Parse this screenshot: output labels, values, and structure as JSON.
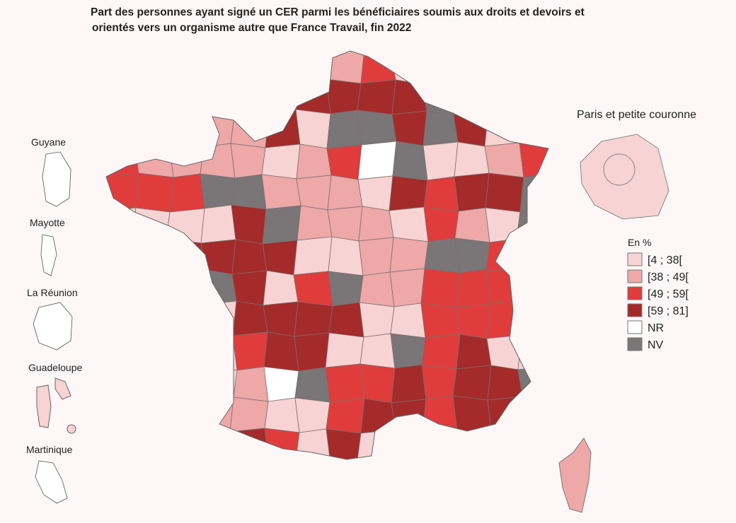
{
  "title": [
    "Part des personnes ayant signé un CER parmi les bénéficiaires soumis aux droits et devoirs et",
    "orientés vers un organisme autre que France Travail, fin 2022"
  ],
  "insets": [
    "Guyane",
    "Mayotte",
    "La Réunion",
    "Guadeloupe",
    "Martinique",
    "Paris et petite couronne"
  ],
  "legend": {
    "title": "En %",
    "items": [
      {
        "label": "[4 ; 38[",
        "color": "#f8d3d3"
      },
      {
        "label": "[38 ; 49[",
        "color": "#eea8a8"
      },
      {
        "label": "[49 ; 59[",
        "color": "#e03c3c"
      },
      {
        "label": "[59 ; 81]",
        "color": "#a52a2a"
      },
      {
        "label": "NR",
        "color": "#ffffff"
      },
      {
        "label": "NV",
        "color": "#7a7576"
      }
    ]
  }
}
